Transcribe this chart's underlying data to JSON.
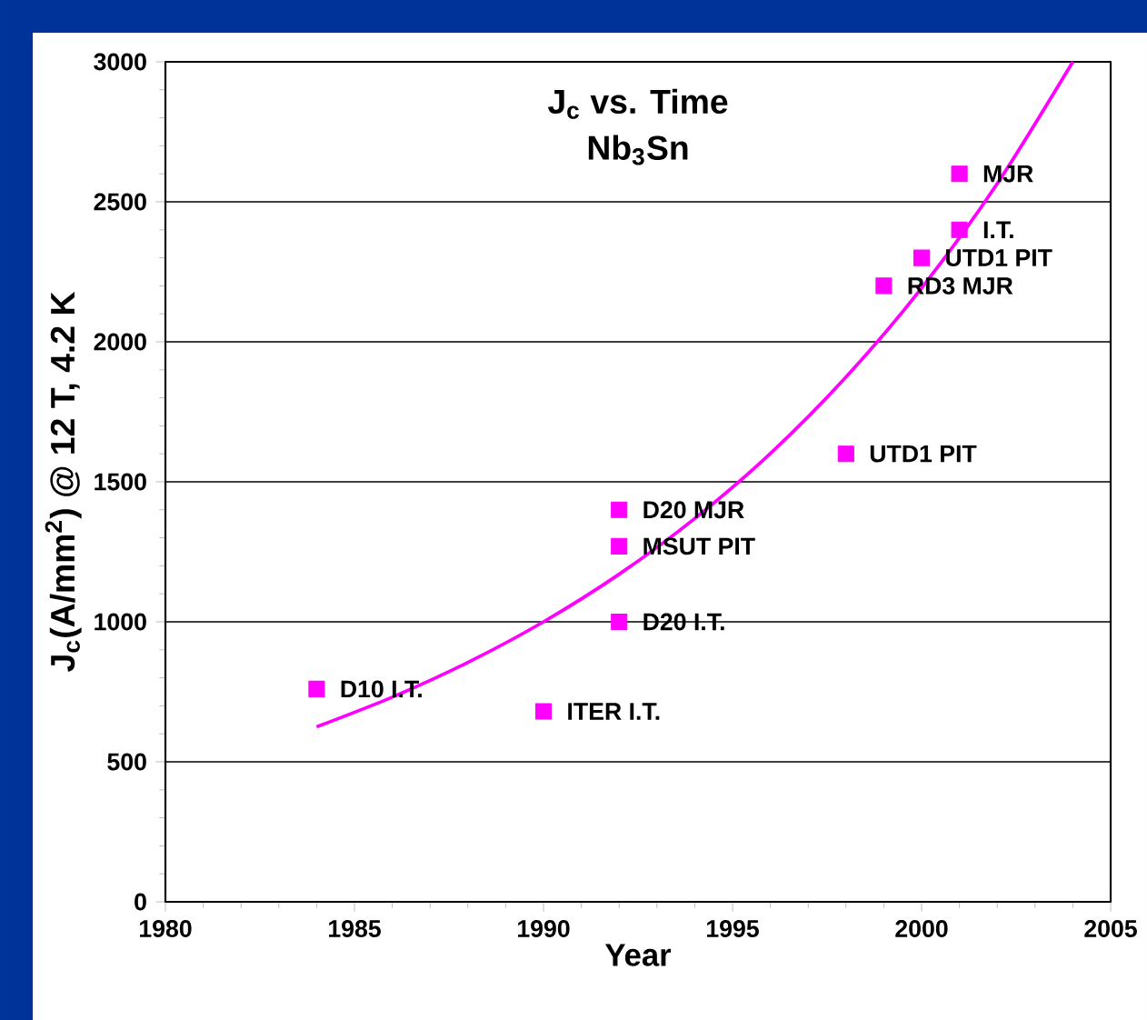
{
  "chart_data": {
    "type": "scatter",
    "title": "J$_{c}$ vs. Time",
    "subtitle": "Nb$_{3}$Sn",
    "xlabel": "Year",
    "ylabel": "J$_{c}$(A/mm$^{2}$) @ 12 T, 4.2 K",
    "x": [
      1984,
      1990,
      1992,
      1992,
      1992,
      1998,
      1999,
      2000,
      2001,
      2001
    ],
    "series": [
      {
        "color": "#ff00ff",
        "marker": "square",
        "values": [
          760,
          680,
          1000,
          1270,
          1400,
          1600,
          2200,
          2300,
          2400,
          2600
        ]
      },
      {
        "type": "line",
        "color": "#ff00ff",
        "marker": "none",
        "line_style": "solid",
        "x": [
          1984,
          1986,
          1988,
          1990,
          1992,
          1994,
          1996,
          1998,
          2000,
          2002,
          2004
        ],
        "values": [
          625,
          731,
          855,
          1000,
          1170,
          1369,
          1601,
          1874,
          2192,
          2565,
          3000
        ]
      }
    ],
    "annotations": [
      {
        "text": "D10 I.T.",
        "x": 1984,
        "y": 760
      },
      {
        "text": "ITER I.T.",
        "x": 1990,
        "y": 680
      },
      {
        "text": "D20 I.T.",
        "x": 1992,
        "y": 1000
      },
      {
        "text": "MSUT PIT",
        "x": 1992,
        "y": 1270
      },
      {
        "text": "D20 MJR",
        "x": 1992,
        "y": 1400
      },
      {
        "text": "UTD1 PIT",
        "x": 1998,
        "y": 1600
      },
      {
        "text": "RD3 MJR",
        "x": 1999,
        "y": 2200
      },
      {
        "text": "UTD1 PIT",
        "x": 2000,
        "y": 2300
      },
      {
        "text": "I.T.",
        "x": 2001,
        "y": 2400
      },
      {
        "text": "MJR",
        "x": 2001,
        "y": 2600
      }
    ],
    "xlim": [
      1980,
      2005
    ],
    "xticks": [
      1980,
      1985,
      1990,
      1995,
      2000,
      2005
    ],
    "ylim": [
      0,
      3000
    ],
    "yticks": [
      0,
      500,
      1000,
      1500,
      2000,
      2500,
      3000
    ],
    "grid": "y"
  }
}
